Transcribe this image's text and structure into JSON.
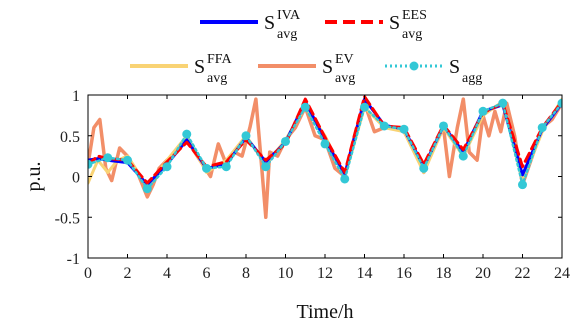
{
  "chart_data": {
    "type": "line",
    "xlabel": "Time/h",
    "ylabel": "p.u.",
    "xlim": [
      0,
      24
    ],
    "ylim": [
      -1,
      1
    ],
    "xticks": [
      "0",
      "2",
      "4",
      "6",
      "8",
      "10",
      "12",
      "14",
      "16",
      "18",
      "20",
      "22",
      "24"
    ],
    "yticks": [
      "1",
      "0.5",
      "0",
      "-0.5",
      "-1"
    ],
    "grid": false,
    "legend_position": "top",
    "series": [
      {
        "name": "S",
        "sup": "IVA",
        "sub": "avg",
        "color": "#0000ff",
        "style": "solid",
        "x": [
          0,
          0.5,
          1,
          2,
          3,
          4,
          5,
          6,
          7,
          8,
          9,
          10,
          11,
          12,
          13,
          14,
          15,
          16,
          17,
          18,
          19,
          20,
          21,
          22,
          23,
          24
        ],
        "y": [
          0.2,
          0.22,
          0.2,
          0.17,
          -0.1,
          0.15,
          0.45,
          0.1,
          0.15,
          0.48,
          0.18,
          0.42,
          0.92,
          0.45,
          0.03,
          0.95,
          0.63,
          0.58,
          0.12,
          0.62,
          0.3,
          0.8,
          0.88,
          0.02,
          0.58,
          0.9
        ]
      },
      {
        "name": "S",
        "sup": "EES",
        "sub": "avg",
        "color": "#ff0000",
        "style": "dash",
        "x": [
          0,
          0.5,
          1,
          2,
          3,
          4,
          5,
          6,
          7,
          8,
          9,
          10,
          11,
          12,
          13,
          14,
          15,
          16,
          17,
          18,
          19,
          20,
          21,
          22,
          23,
          24
        ],
        "y": [
          0.15,
          0.25,
          0.22,
          0.2,
          -0.08,
          0.18,
          0.42,
          0.12,
          0.18,
          0.45,
          0.2,
          0.4,
          0.95,
          0.48,
          0.05,
          0.98,
          0.62,
          0.6,
          0.15,
          0.63,
          0.33,
          0.78,
          0.9,
          0.12,
          0.6,
          0.92
        ]
      },
      {
        "name": "S",
        "sup": "FFA",
        "sub": "avg",
        "color": "#f9d374",
        "style": "solid",
        "x": [
          0,
          0.5,
          1,
          1.5,
          2,
          3,
          4,
          5,
          6,
          7,
          8,
          9,
          10,
          11,
          12,
          13,
          14,
          15,
          16,
          17,
          18,
          19,
          20,
          21,
          22,
          23,
          24
        ],
        "y": [
          -0.08,
          0.2,
          0.05,
          0.2,
          0.25,
          -0.12,
          0.2,
          0.5,
          0.05,
          0.2,
          0.5,
          0.15,
          0.45,
          0.85,
          0.5,
          0.0,
          0.85,
          0.6,
          0.55,
          0.05,
          0.6,
          0.25,
          0.75,
          0.92,
          -0.05,
          0.55,
          0.95
        ]
      },
      {
        "name": "S",
        "sup": "EV",
        "sub": "avg",
        "color": "#f28e68",
        "style": "solid",
        "x": [
          0,
          0.3,
          0.6,
          0.9,
          1.2,
          1.6,
          2,
          2.5,
          3,
          3.3,
          3.6,
          4,
          4.5,
          5,
          5.4,
          5.8,
          6.2,
          6.6,
          7,
          7.4,
          7.8,
          8.2,
          8.5,
          8.8,
          9,
          9.2,
          9.6,
          10,
          10.5,
          11,
          11.5,
          12,
          12.5,
          13,
          13.5,
          14,
          14.5,
          15,
          15.5,
          16,
          16.5,
          17,
          17.5,
          18,
          18.3,
          18.7,
          19,
          19.3,
          19.7,
          20,
          20.3,
          20.6,
          20.9,
          21.2,
          21.6,
          22,
          22.5,
          23,
          23.5,
          24
        ],
        "y": [
          0.15,
          0.6,
          0.7,
          0.1,
          -0.05,
          0.35,
          0.25,
          0.05,
          -0.25,
          -0.1,
          0.1,
          0.2,
          0.3,
          0.45,
          0.3,
          0.15,
          0.0,
          0.4,
          0.15,
          0.3,
          0.25,
          0.6,
          0.95,
          0.1,
          -0.5,
          0.3,
          0.25,
          0.45,
          0.6,
          0.85,
          0.5,
          0.45,
          0.1,
          0.0,
          0.5,
          0.9,
          0.55,
          0.6,
          0.6,
          0.55,
          0.35,
          0.05,
          0.35,
          0.6,
          0.0,
          0.6,
          0.95,
          0.3,
          0.2,
          0.75,
          0.5,
          0.8,
          0.55,
          0.9,
          0.5,
          -0.1,
          0.25,
          0.6,
          0.7,
          0.9
        ]
      },
      {
        "name": "S",
        "sup": "",
        "sub": "agg",
        "color": "#33c8d6",
        "style": "dot",
        "markers": true,
        "x": [
          0,
          1,
          2,
          3,
          4,
          5,
          6,
          7,
          8,
          9,
          10,
          11,
          12,
          13,
          14,
          15,
          16,
          17,
          18,
          19,
          20,
          21,
          22,
          23,
          24
        ],
        "y": [
          0.15,
          0.23,
          0.2,
          -0.15,
          0.12,
          0.52,
          0.1,
          0.12,
          0.5,
          0.12,
          0.43,
          0.85,
          0.4,
          -0.03,
          0.85,
          0.62,
          0.58,
          0.1,
          0.62,
          0.25,
          0.8,
          0.9,
          -0.1,
          0.6,
          0.9
        ]
      }
    ]
  }
}
